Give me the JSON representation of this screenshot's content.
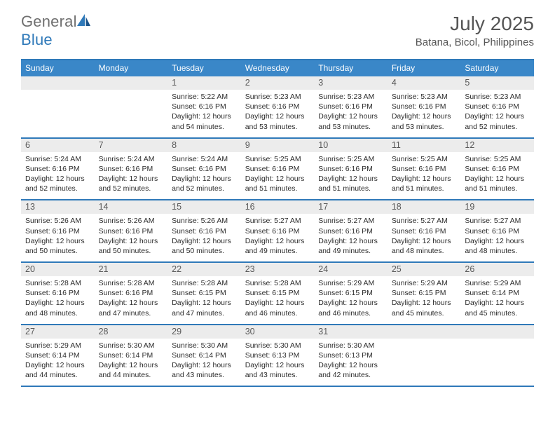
{
  "brand": {
    "general": "General",
    "blue": "Blue"
  },
  "title": "July 2025",
  "location": "Batana, Bicol, Philippines",
  "colors": {
    "header_bg": "#3a87c8",
    "border": "#2f79b9",
    "daynum_bg": "#ececec",
    "text": "#333333"
  },
  "grid": {
    "cols": 7,
    "col_labels": [
      "Sunday",
      "Monday",
      "Tuesday",
      "Wednesday",
      "Thursday",
      "Friday",
      "Saturday"
    ]
  },
  "days": [
    {
      "n": "",
      "sr": "",
      "ss": "",
      "dl": ""
    },
    {
      "n": "",
      "sr": "",
      "ss": "",
      "dl": ""
    },
    {
      "n": "1",
      "sr": "5:22 AM",
      "ss": "6:16 PM",
      "dl": "12 hours and 54 minutes."
    },
    {
      "n": "2",
      "sr": "5:23 AM",
      "ss": "6:16 PM",
      "dl": "12 hours and 53 minutes."
    },
    {
      "n": "3",
      "sr": "5:23 AM",
      "ss": "6:16 PM",
      "dl": "12 hours and 53 minutes."
    },
    {
      "n": "4",
      "sr": "5:23 AM",
      "ss": "6:16 PM",
      "dl": "12 hours and 53 minutes."
    },
    {
      "n": "5",
      "sr": "5:23 AM",
      "ss": "6:16 PM",
      "dl": "12 hours and 52 minutes."
    },
    {
      "n": "6",
      "sr": "5:24 AM",
      "ss": "6:16 PM",
      "dl": "12 hours and 52 minutes."
    },
    {
      "n": "7",
      "sr": "5:24 AM",
      "ss": "6:16 PM",
      "dl": "12 hours and 52 minutes."
    },
    {
      "n": "8",
      "sr": "5:24 AM",
      "ss": "6:16 PM",
      "dl": "12 hours and 52 minutes."
    },
    {
      "n": "9",
      "sr": "5:25 AM",
      "ss": "6:16 PM",
      "dl": "12 hours and 51 minutes."
    },
    {
      "n": "10",
      "sr": "5:25 AM",
      "ss": "6:16 PM",
      "dl": "12 hours and 51 minutes."
    },
    {
      "n": "11",
      "sr": "5:25 AM",
      "ss": "6:16 PM",
      "dl": "12 hours and 51 minutes."
    },
    {
      "n": "12",
      "sr": "5:25 AM",
      "ss": "6:16 PM",
      "dl": "12 hours and 51 minutes."
    },
    {
      "n": "13",
      "sr": "5:26 AM",
      "ss": "6:16 PM",
      "dl": "12 hours and 50 minutes."
    },
    {
      "n": "14",
      "sr": "5:26 AM",
      "ss": "6:16 PM",
      "dl": "12 hours and 50 minutes."
    },
    {
      "n": "15",
      "sr": "5:26 AM",
      "ss": "6:16 PM",
      "dl": "12 hours and 50 minutes."
    },
    {
      "n": "16",
      "sr": "5:27 AM",
      "ss": "6:16 PM",
      "dl": "12 hours and 49 minutes."
    },
    {
      "n": "17",
      "sr": "5:27 AM",
      "ss": "6:16 PM",
      "dl": "12 hours and 49 minutes."
    },
    {
      "n": "18",
      "sr": "5:27 AM",
      "ss": "6:16 PM",
      "dl": "12 hours and 48 minutes."
    },
    {
      "n": "19",
      "sr": "5:27 AM",
      "ss": "6:16 PM",
      "dl": "12 hours and 48 minutes."
    },
    {
      "n": "20",
      "sr": "5:28 AM",
      "ss": "6:16 PM",
      "dl": "12 hours and 48 minutes."
    },
    {
      "n": "21",
      "sr": "5:28 AM",
      "ss": "6:16 PM",
      "dl": "12 hours and 47 minutes."
    },
    {
      "n": "22",
      "sr": "5:28 AM",
      "ss": "6:15 PM",
      "dl": "12 hours and 47 minutes."
    },
    {
      "n": "23",
      "sr": "5:28 AM",
      "ss": "6:15 PM",
      "dl": "12 hours and 46 minutes."
    },
    {
      "n": "24",
      "sr": "5:29 AM",
      "ss": "6:15 PM",
      "dl": "12 hours and 46 minutes."
    },
    {
      "n": "25",
      "sr": "5:29 AM",
      "ss": "6:15 PM",
      "dl": "12 hours and 45 minutes."
    },
    {
      "n": "26",
      "sr": "5:29 AM",
      "ss": "6:14 PM",
      "dl": "12 hours and 45 minutes."
    },
    {
      "n": "27",
      "sr": "5:29 AM",
      "ss": "6:14 PM",
      "dl": "12 hours and 44 minutes."
    },
    {
      "n": "28",
      "sr": "5:30 AM",
      "ss": "6:14 PM",
      "dl": "12 hours and 44 minutes."
    },
    {
      "n": "29",
      "sr": "5:30 AM",
      "ss": "6:14 PM",
      "dl": "12 hours and 43 minutes."
    },
    {
      "n": "30",
      "sr": "5:30 AM",
      "ss": "6:13 PM",
      "dl": "12 hours and 43 minutes."
    },
    {
      "n": "31",
      "sr": "5:30 AM",
      "ss": "6:13 PM",
      "dl": "12 hours and 42 minutes."
    },
    {
      "n": "",
      "sr": "",
      "ss": "",
      "dl": ""
    },
    {
      "n": "",
      "sr": "",
      "ss": "",
      "dl": ""
    }
  ],
  "labels": {
    "sunrise": "Sunrise: ",
    "sunset": "Sunset: ",
    "daylight": "Daylight: "
  }
}
